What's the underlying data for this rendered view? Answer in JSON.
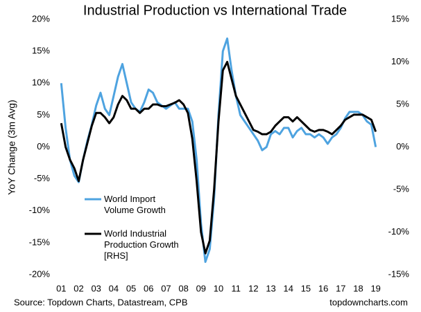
{
  "chart_data": {
    "type": "line",
    "title": "Industrial Production vs International Trade",
    "y_label": "YoY Change (3m Avg)",
    "source": "Source: Topdown Charts, Datastream, CPB",
    "watermark": "topdowncharts.com",
    "x": [
      2001,
      2001.25,
      2001.5,
      2001.75,
      2002,
      2002.25,
      2002.5,
      2002.75,
      2003,
      2003.25,
      2003.5,
      2003.75,
      2004,
      2004.25,
      2004.5,
      2004.75,
      2005,
      2005.25,
      2005.5,
      2005.75,
      2006,
      2006.25,
      2006.5,
      2006.75,
      2007,
      2007.25,
      2007.5,
      2007.75,
      2008,
      2008.25,
      2008.5,
      2008.75,
      2009,
      2009.25,
      2009.5,
      2009.75,
      2010,
      2010.25,
      2010.5,
      2010.75,
      2011,
      2011.25,
      2011.5,
      2011.75,
      2012,
      2012.25,
      2012.5,
      2012.75,
      2013,
      2013.25,
      2013.5,
      2013.75,
      2014,
      2014.25,
      2014.5,
      2014.75,
      2015,
      2015.25,
      2015.5,
      2015.75,
      2016,
      2016.25,
      2016.5,
      2016.75,
      2017,
      2017.25,
      2017.5,
      2017.75,
      2018,
      2018.25,
      2018.5,
      2018.75,
      2019
    ],
    "series": [
      {
        "name": "World Import Volume Growth",
        "color": "#4ea3e0",
        "axis": "y",
        "values": [
          10,
          3,
          -2,
          -4.5,
          -5.5,
          -2,
          1,
          3.5,
          6.5,
          8.5,
          6,
          5,
          8,
          11,
          13,
          10,
          7,
          6,
          5.5,
          7,
          9,
          8.5,
          7,
          6.5,
          6,
          6.5,
          7,
          6,
          6,
          6,
          4,
          -2,
          -12,
          -18,
          -16,
          -8,
          5,
          15,
          17,
          12,
          8,
          5,
          4,
          3,
          2,
          1,
          -0.5,
          0,
          2,
          2.5,
          2,
          3,
          3,
          1.5,
          2.5,
          3,
          2,
          2,
          1.5,
          2,
          1.5,
          0.5,
          1.5,
          2,
          3,
          4.5,
          5.5,
          5.5,
          5.5,
          5,
          4,
          3.5,
          0
        ]
      },
      {
        "name": "World Industrial Production Growth [RHS]",
        "color": "#000000",
        "axis": "y2",
        "values": [
          2.8,
          0,
          -1.5,
          -2.5,
          -4,
          -1.5,
          0.5,
          2.5,
          4,
          4,
          3.5,
          2.8,
          3.5,
          5,
          6,
          5.5,
          4.5,
          4.5,
          4,
          4.5,
          4.5,
          5,
          5,
          4.8,
          4.8,
          5,
          5.2,
          5.5,
          5,
          4,
          1,
          -4,
          -10,
          -12.5,
          -11,
          -5,
          3,
          9,
          10,
          8,
          6,
          5,
          4,
          3,
          2,
          1.8,
          1.5,
          1.5,
          1.8,
          2.5,
          3,
          3.5,
          3.5,
          3,
          3.5,
          3,
          2.5,
          2,
          1.8,
          2,
          2,
          1.8,
          1.5,
          2,
          2.5,
          3.2,
          3.5,
          3.8,
          3.8,
          3.8,
          3.5,
          3.2,
          1.8
        ]
      }
    ],
    "xlim": [
      2000.75,
      2019.25
    ],
    "xticks": [
      {
        "value": 2001,
        "label": "01"
      },
      {
        "value": 2002,
        "label": "02"
      },
      {
        "value": 2003,
        "label": "03"
      },
      {
        "value": 2004,
        "label": "04"
      },
      {
        "value": 2005,
        "label": "05"
      },
      {
        "value": 2006,
        "label": "06"
      },
      {
        "value": 2007,
        "label": "07"
      },
      {
        "value": 2008,
        "label": "08"
      },
      {
        "value": 2009,
        "label": "09"
      },
      {
        "value": 2010,
        "label": "10"
      },
      {
        "value": 2011,
        "label": "11"
      },
      {
        "value": 2012,
        "label": "12"
      },
      {
        "value": 2013,
        "label": "13"
      },
      {
        "value": 2014,
        "label": "14"
      },
      {
        "value": 2015,
        "label": "15"
      },
      {
        "value": 2016,
        "label": "16"
      },
      {
        "value": 2017,
        "label": "17"
      },
      {
        "value": 2018,
        "label": "18"
      },
      {
        "value": 2019,
        "label": "19"
      }
    ],
    "ylim": [
      -20,
      20
    ],
    "yticks": [
      {
        "value": -20,
        "label": "-20%"
      },
      {
        "value": -15,
        "label": "-15%"
      },
      {
        "value": -10,
        "label": "-10%"
      },
      {
        "value": -5,
        "label": "-5%"
      },
      {
        "value": 0,
        "label": "0%"
      },
      {
        "value": 5,
        "label": "5%"
      },
      {
        "value": 10,
        "label": "10%"
      },
      {
        "value": 15,
        "label": "15%"
      },
      {
        "value": 20,
        "label": "20%"
      }
    ],
    "y2lim": [
      -15,
      15
    ],
    "y2ticks": [
      {
        "value": -15,
        "label": "-15%"
      },
      {
        "value": -10,
        "label": "-10%"
      },
      {
        "value": -5,
        "label": "-5%"
      },
      {
        "value": 0,
        "label": "0%"
      },
      {
        "value": 5,
        "label": "5%"
      },
      {
        "value": 10,
        "label": "10%"
      },
      {
        "value": 15,
        "label": "15%"
      }
    ],
    "grid": false
  }
}
